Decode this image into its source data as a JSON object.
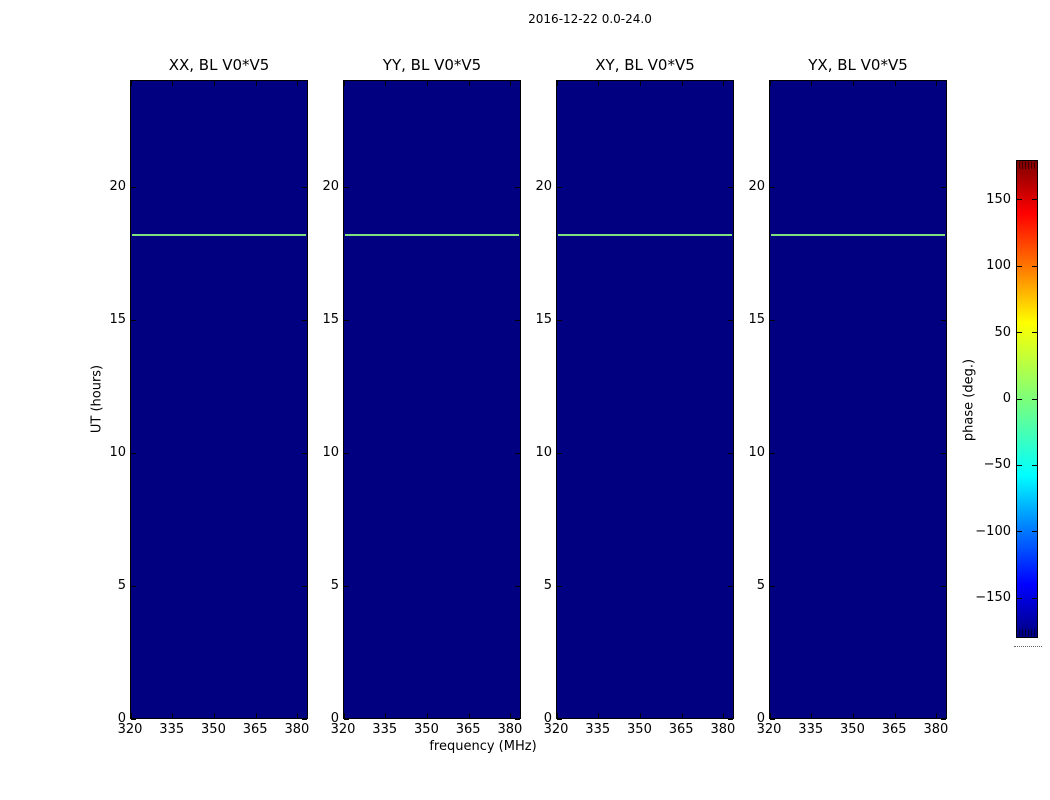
{
  "figure_title": "2016-12-22 0.0-24.0",
  "chart_data": {
    "type": "heatmap",
    "title": "2016-12-22 0.0-24.0",
    "xlabel": "frequency (MHz)",
    "ylabel": "UT (hours)",
    "panels": [
      {
        "title": "XX, BL V0*V5"
      },
      {
        "title": "YY, BL V0*V5"
      },
      {
        "title": "XY, BL V0*V5"
      },
      {
        "title": "YX, BL V0*V5"
      }
    ],
    "x_axis": {
      "range": [
        320,
        384
      ],
      "ticks": [
        320,
        335,
        350,
        365,
        380
      ]
    },
    "y_axis": {
      "range": [
        0,
        24
      ],
      "ticks": [
        0,
        5,
        10,
        15,
        20
      ]
    },
    "colorbar": {
      "label": "phase (deg.)",
      "range": [
        -180,
        180
      ],
      "ticks": [
        150,
        100,
        50,
        0,
        -50,
        -100,
        -150
      ],
      "colormap": "jet"
    },
    "heatmap_summary": {
      "background_phase_deg": -180,
      "feature_row": {
        "ut_hours": 18.2,
        "phase_deg_approx": 10,
        "present_in_all_panels": true
      }
    },
    "colors": {
      "panel_background": "#000080",
      "feature_line": "#7de07d",
      "colorbar_bottom": "#000080",
      "colorbar_top": "#7f0000"
    }
  }
}
